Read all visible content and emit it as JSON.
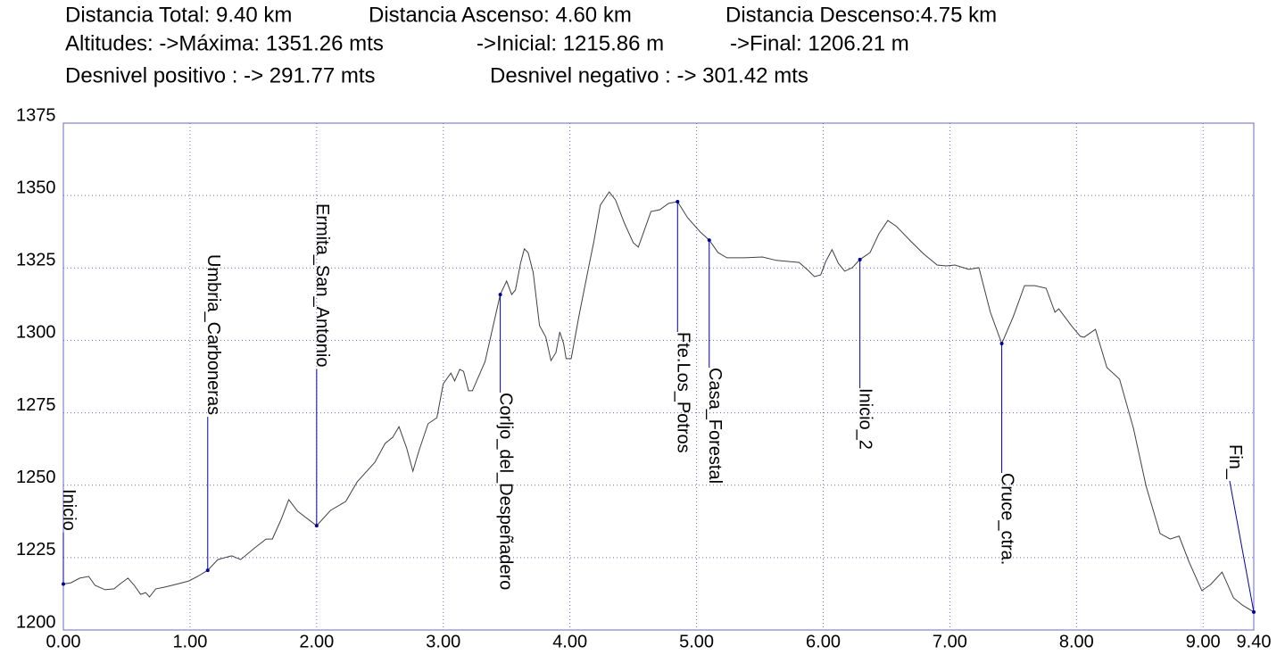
{
  "chart_data": {
    "type": "line",
    "header": [
      [
        "Distancia Total: 9.40 km",
        "Distancia Ascenso: 4.60 km",
        "Distancia Descenso:4.75 km"
      ],
      [
        "Altitudes: ->Máxima: 1351.26 mts",
        "->Inicial: 1215.86 m",
        "->Final: 1206.21 m"
      ],
      [
        "Desnivel positivo : -> 291.77 mts",
        "Desnivel negativo : -> 301.42 mts"
      ]
    ],
    "x": [
      0.0,
      0.06,
      0.13,
      0.2,
      0.25,
      0.33,
      0.4,
      0.45,
      0.51,
      0.56,
      0.61,
      0.65,
      0.68,
      0.73,
      0.8,
      0.91,
      0.99,
      1.06,
      1.14,
      1.22,
      1.33,
      1.4,
      1.51,
      1.6,
      1.65,
      1.72,
      1.78,
      1.85,
      2.0,
      2.11,
      2.23,
      2.32,
      2.46,
      2.54,
      2.6,
      2.65,
      2.71,
      2.76,
      2.81,
      2.88,
      2.95,
      3.0,
      3.06,
      3.09,
      3.13,
      3.16,
      3.2,
      3.23,
      3.33,
      3.41,
      3.45,
      3.5,
      3.54,
      3.57,
      3.61,
      3.64,
      3.67,
      3.71,
      3.76,
      3.81,
      3.85,
      3.89,
      3.92,
      3.95,
      3.97,
      4.01,
      4.07,
      4.14,
      4.19,
      4.24,
      4.31,
      4.36,
      4.43,
      4.5,
      4.54,
      4.57,
      4.64,
      4.71,
      4.78,
      4.85,
      4.93,
      5.03,
      5.1,
      5.17,
      5.24,
      5.38,
      5.52,
      5.63,
      5.81,
      5.88,
      5.93,
      5.98,
      6.02,
      6.07,
      6.12,
      6.17,
      6.23,
      6.29,
      6.37,
      6.44,
      6.51,
      6.58,
      6.69,
      6.79,
      6.9,
      6.97,
      7.04,
      7.15,
      7.23,
      7.32,
      7.41,
      7.5,
      7.59,
      7.67,
      7.76,
      7.83,
      7.86,
      7.96,
      8.03,
      8.06,
      8.15,
      8.24,
      8.34,
      8.45,
      8.55,
      8.66,
      8.74,
      8.81,
      8.89,
      8.99,
      9.06,
      9.15,
      9.24,
      9.31,
      9.4
    ],
    "values": [
      1215.86,
      1216.3,
      1217.9,
      1218.5,
      1215.4,
      1213.9,
      1214.2,
      1216.0,
      1217.9,
      1215.4,
      1212.3,
      1212.9,
      1211.4,
      1214.2,
      1214.8,
      1216.0,
      1216.9,
      1218.5,
      1220.6,
      1224.3,
      1225.6,
      1224.3,
      1228.3,
      1231.4,
      1231.4,
      1238.2,
      1245.0,
      1241.0,
      1236.0,
      1241.3,
      1244.4,
      1251.1,
      1257.9,
      1264.4,
      1266.5,
      1270.2,
      1262.9,
      1254.8,
      1262.2,
      1271.2,
      1273.3,
      1285.0,
      1288.7,
      1286.0,
      1290.0,
      1289.3,
      1282.6,
      1282.6,
      1292.7,
      1308.1,
      1315.8,
      1320.5,
      1315.8,
      1317.4,
      1326.6,
      1331.6,
      1330.3,
      1323.5,
      1305.1,
      1301.1,
      1293.0,
      1295.8,
      1302.9,
      1298.9,
      1293.7,
      1293.7,
      1308.1,
      1323.5,
      1334.3,
      1346.7,
      1351.26,
      1348.5,
      1340.5,
      1333.7,
      1332.2,
      1335.9,
      1344.5,
      1345.1,
      1347.3,
      1347.9,
      1342.3,
      1337.4,
      1334.6,
      1330.3,
      1328.5,
      1328.5,
      1328.8,
      1327.6,
      1326.9,
      1324.2,
      1322.0,
      1322.6,
      1327.2,
      1331.3,
      1326.6,
      1323.9,
      1325.1,
      1327.9,
      1330.3,
      1336.8,
      1341.4,
      1339.3,
      1334.3,
      1330.0,
      1326.0,
      1325.7,
      1326.0,
      1324.5,
      1325.1,
      1309.7,
      1298.9,
      1308.1,
      1318.9,
      1318.9,
      1318.0,
      1309.7,
      1310.9,
      1305.1,
      1301.4,
      1301.1,
      1303.8,
      1290.6,
      1286.6,
      1269.6,
      1249.6,
      1233.3,
      1231.4,
      1232.4,
      1223.4,
      1213.6,
      1215.7,
      1220.0,
      1211.1,
      1208.6,
      1206.21
    ],
    "color": "#404040",
    "marker_color": "#0000a0",
    "annotations": [
      {
        "text": "Inicio",
        "x": 0.0,
        "y": 1215.86
      },
      {
        "text": "Umbria_Carboneras",
        "x": 1.14,
        "y": 1220.6
      },
      {
        "text": "Ermita_San_Antonio",
        "x": 2.0,
        "y": 1236.0
      },
      {
        "text": "Corljo_del_Despeñadero",
        "x": 3.45,
        "y": 1315.8
      },
      {
        "text": "Fte.Los_Potros",
        "x": 4.85,
        "y": 1347.9
      },
      {
        "text": "Casa_Forestal",
        "x": 5.1,
        "y": 1334.6
      },
      {
        "text": "Inicio_2",
        "x": 6.29,
        "y": 1327.9
      },
      {
        "text": "Cruce_ctra.",
        "x": 7.41,
        "y": 1298.9
      },
      {
        "text": "Fin_",
        "x": 9.4,
        "y": 1206.21
      }
    ],
    "xlim": [
      0,
      9.4
    ],
    "xticks": [
      {
        "value": 0,
        "label": "0.00"
      },
      {
        "value": 1,
        "label": "1.00"
      },
      {
        "value": 2,
        "label": "2.00"
      },
      {
        "value": 3,
        "label": "3.00"
      },
      {
        "value": 4,
        "label": "4.00"
      },
      {
        "value": 5,
        "label": "5.00"
      },
      {
        "value": 6,
        "label": "6.00"
      },
      {
        "value": 7,
        "label": "7.00"
      },
      {
        "value": 8,
        "label": "8.00"
      },
      {
        "value": 9,
        "label": "9.00"
      },
      {
        "value": 9.4,
        "label": "9.40"
      }
    ],
    "ylim": [
      1200,
      1375
    ],
    "yticks": [
      1200,
      1225,
      1250,
      1275,
      1300,
      1325,
      1350,
      1375
    ],
    "grid": true
  }
}
